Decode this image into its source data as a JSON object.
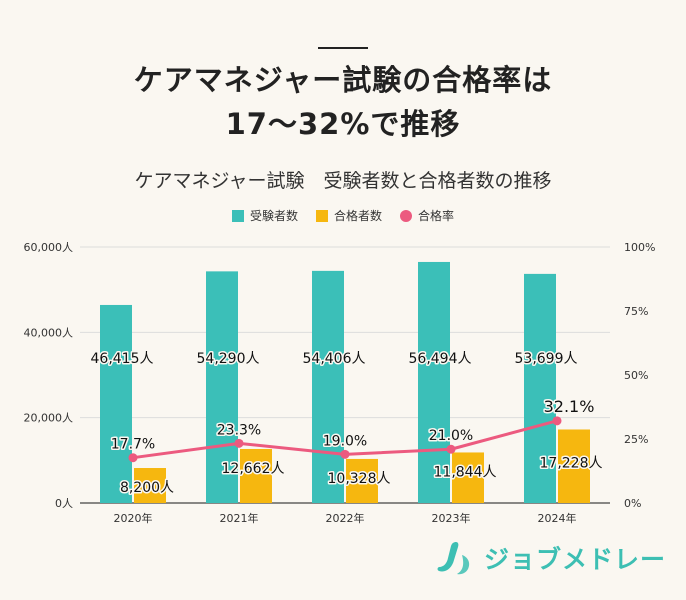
{
  "heading": {
    "line1": "ケアマネジャー試験の合格率は",
    "line2": "17～32%で推移"
  },
  "brand": {
    "name": "ジョブメドレー"
  },
  "colors": {
    "applicants": "#3bbfb8",
    "passers": "#f6b70f",
    "rate": "#ec5a7f"
  },
  "chart_data": {
    "type": "bar",
    "title": "ケアマネジャー試験　受験者数と合格者数の推移",
    "categories": [
      "2020年",
      "2021年",
      "2022年",
      "2023年",
      "2024年"
    ],
    "series": [
      {
        "name": "受験者数",
        "type": "bar",
        "axis": "left",
        "values": [
          46415,
          54290,
          54406,
          56494,
          53699
        ],
        "labels": [
          "46,415人",
          "54,290人",
          "54,406人",
          "56,494人",
          "53,699人"
        ]
      },
      {
        "name": "合格者数",
        "type": "bar",
        "axis": "left",
        "values": [
          8200,
          12662,
          10328,
          11844,
          17228
        ],
        "labels": [
          "8,200人",
          "12,662人",
          "10,328人",
          "11,844人",
          "17,228人"
        ]
      },
      {
        "name": "合格率",
        "type": "line",
        "axis": "right",
        "values": [
          17.7,
          23.3,
          19.0,
          21.0,
          32.1
        ],
        "labels": [
          "17.7%",
          "23.3%",
          "19.0%",
          "21.0%",
          "32.1%"
        ]
      }
    ],
    "y_left": {
      "min": 0,
      "max": 60000,
      "ticks": [
        "0人",
        "20,000人",
        "40,000人",
        "60,000人"
      ],
      "tick_values": [
        0,
        20000,
        40000,
        60000
      ]
    },
    "y_right": {
      "min": 0,
      "max": 100,
      "ticks": [
        "0%",
        "25%",
        "50%",
        "75%",
        "100%"
      ],
      "tick_values": [
        0,
        25,
        50,
        75,
        100
      ]
    },
    "grid": true,
    "legend": "top-center"
  }
}
